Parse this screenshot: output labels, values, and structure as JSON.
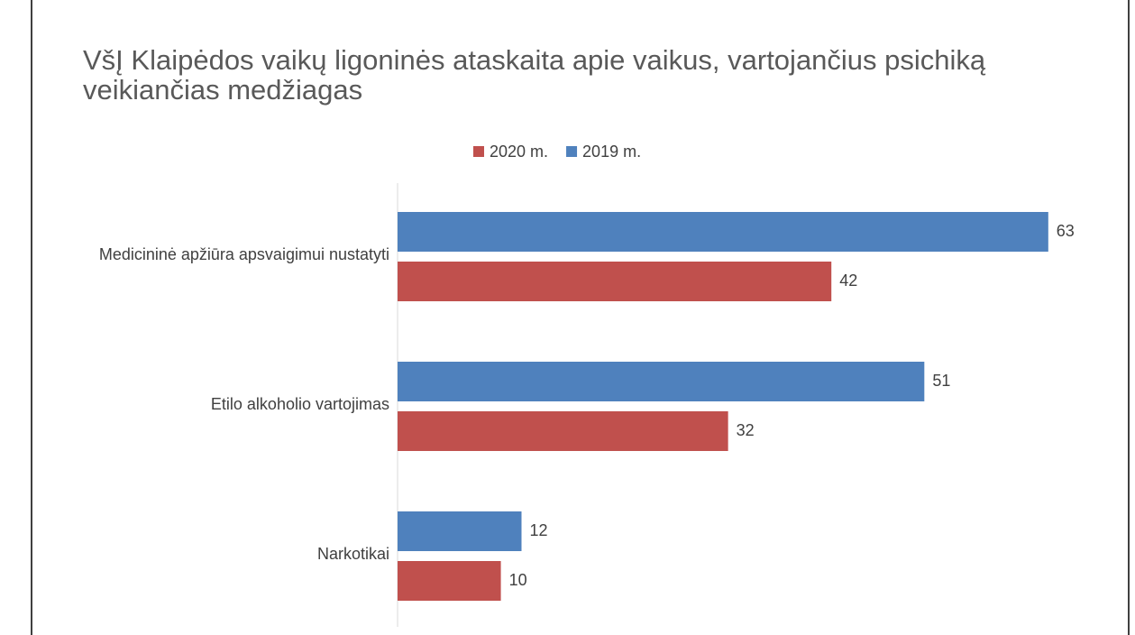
{
  "chart_data": {
    "type": "bar",
    "orientation": "horizontal",
    "title": "VšĮ Klaipėdos vaikų ligoninės ataskaita apie vaikus, vartojančius psichiką veikiančias medžiagas",
    "categories": [
      "Medicininė apžiūra apsvaigimui nustatyti",
      "Etilo alkoholio vartojimas",
      "Narkotikai"
    ],
    "series": [
      {
        "name": "2020 m.",
        "color": "#c0504d",
        "values": [
          42,
          32,
          10
        ]
      },
      {
        "name": "2019 m.",
        "color": "#4f81bd",
        "values": [
          63,
          51,
          12
        ]
      }
    ],
    "xlim": [
      0,
      70
    ],
    "legend": "top"
  }
}
